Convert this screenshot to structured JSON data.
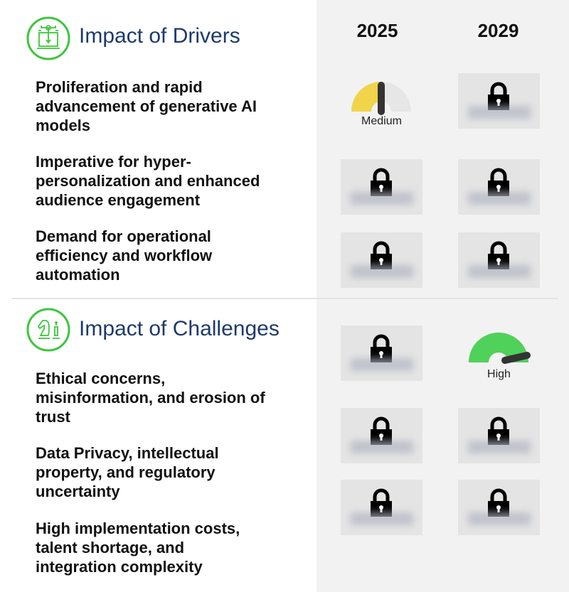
{
  "columns": [
    "2025",
    "2029"
  ],
  "drivers": {
    "title": "Impact of Drivers",
    "icon": "laptop-circuit-icon",
    "items": [
      {
        "label": "Proliferation and rapid advancement of generative AI models",
        "2025": {
          "locked": false,
          "level": "Medium",
          "fraction": 0.5
        },
        "2029": {
          "locked": true
        }
      },
      {
        "label": "Imperative for hyper-personalization and enhanced audience engagement",
        "2025": {
          "locked": true
        },
        "2029": {
          "locked": true
        }
      },
      {
        "label": "Demand for operational efficiency and workflow automation",
        "2025": {
          "locked": true
        },
        "2029": {
          "locked": true
        }
      }
    ]
  },
  "challenges": {
    "title": "Impact of Challenges",
    "icon": "chess-pieces-icon",
    "items": [
      {
        "label": "Ethical concerns, misinformation, and erosion of trust",
        "2025": {
          "locked": true
        },
        "2029": {
          "locked": false,
          "level": "High",
          "fraction": 1.0
        }
      },
      {
        "label": "Data Privacy, intellectual property, and regulatory uncertainty",
        "2025": {
          "locked": true
        },
        "2029": {
          "locked": true
        }
      },
      {
        "label": "High implementation costs, talent shortage, and integration complexity",
        "2025": {
          "locked": true
        },
        "2029": {
          "locked": true
        }
      }
    ]
  },
  "colors": {
    "accent": "#3cc63c",
    "title": "#1d3a6b",
    "medium": "#f0d44a",
    "high": "#4fd15a",
    "panel": "#f2f2f2"
  }
}
